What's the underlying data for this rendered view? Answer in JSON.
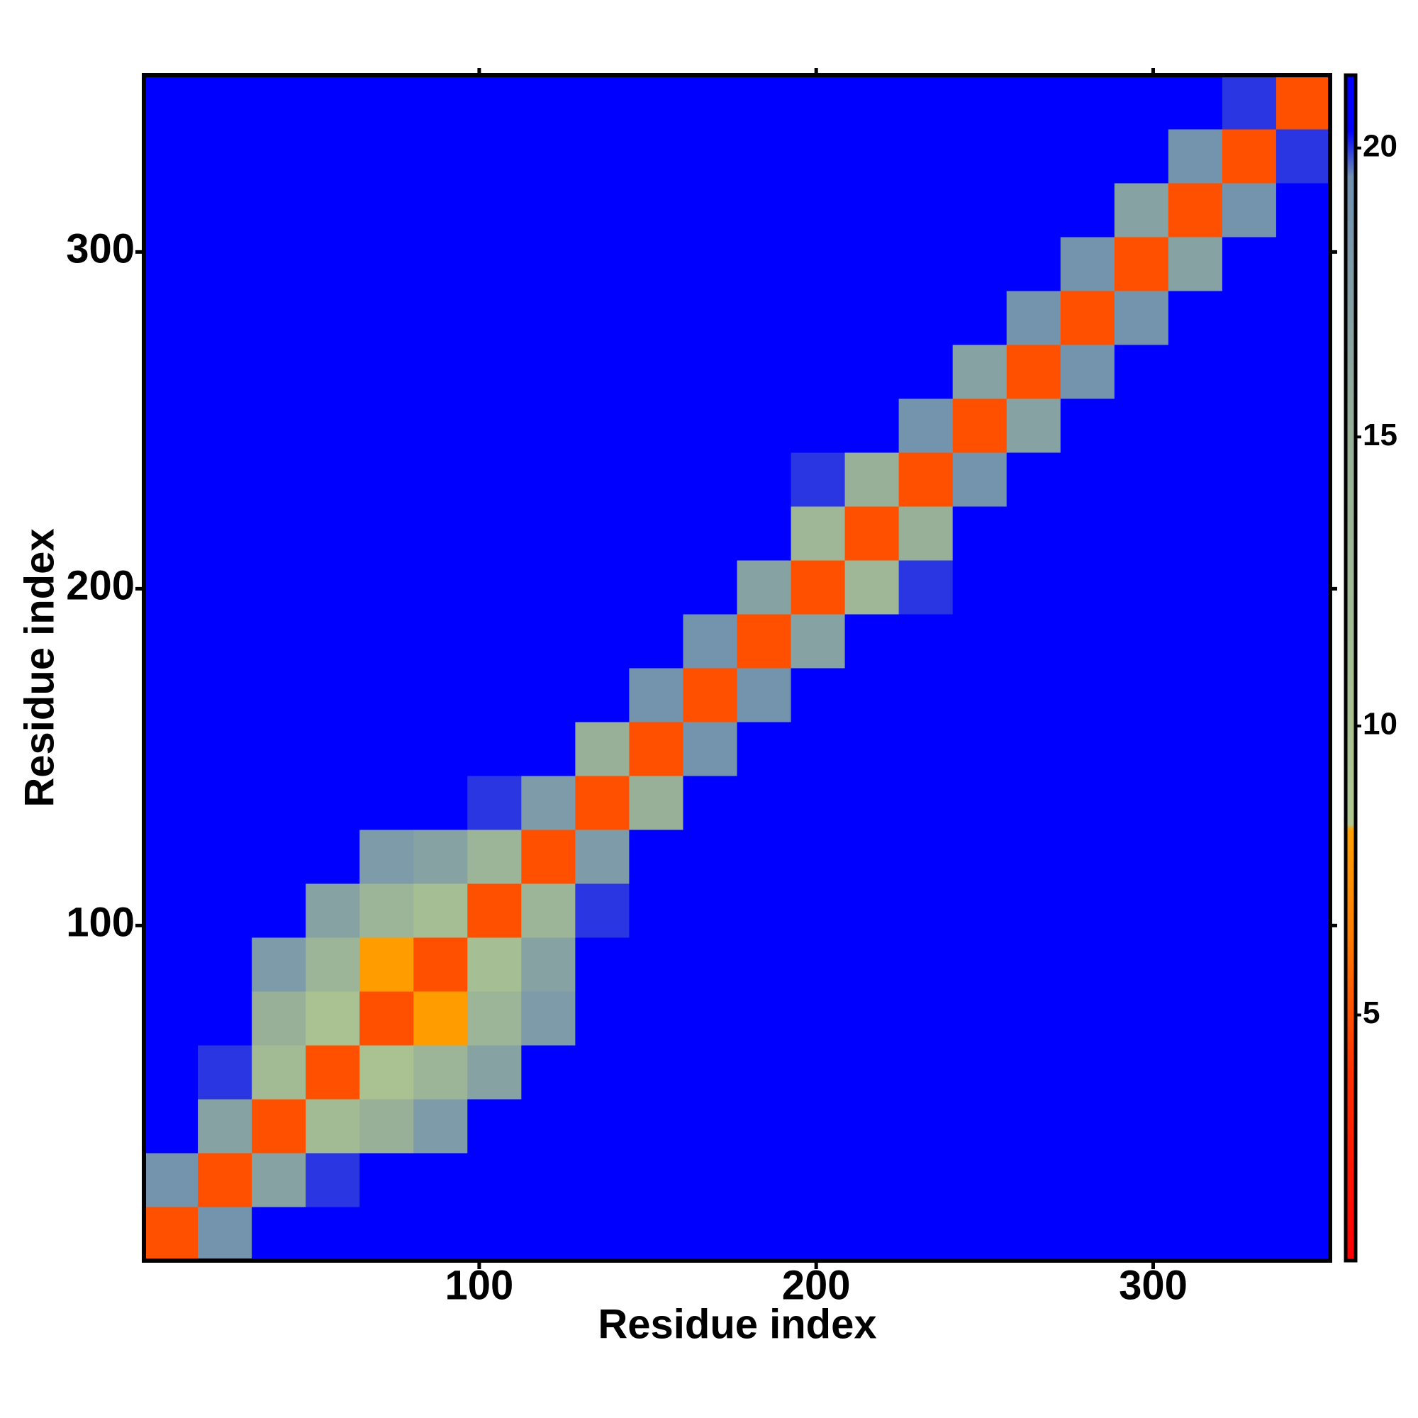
{
  "chart_data": {
    "type": "heatmap",
    "xlabel": "Residue index",
    "ylabel": "Residue index",
    "x": [
      8.5,
      24.5,
      40.5,
      56.5,
      72.5,
      88.5,
      104.5,
      120.5,
      136.5,
      152.5,
      168.5,
      184.5,
      200.5,
      216.5,
      232.5,
      248.5,
      264.5,
      280.5,
      296.5,
      312.5,
      328.5,
      344.5
    ],
    "y": [
      8.5,
      24.5,
      40.5,
      56.5,
      72.5,
      88.5,
      104.5,
      120.5,
      136.5,
      152.5,
      168.5,
      184.5,
      200.5,
      216.5,
      232.5,
      248.5,
      264.5,
      280.5,
      296.5,
      312.5,
      328.5,
      344.5
    ],
    "z": [
      [
        5,
        19,
        21,
        21,
        21,
        21,
        21,
        21,
        21,
        21,
        21,
        21,
        21,
        21,
        21,
        21,
        21,
        21,
        21,
        21,
        21,
        21
      ],
      [
        19,
        5,
        17,
        20,
        21,
        21,
        21,
        21,
        21,
        21,
        21,
        21,
        21,
        21,
        21,
        21,
        21,
        21,
        21,
        21,
        21,
        21
      ],
      [
        21,
        17,
        5,
        12,
        15,
        18,
        21,
        21,
        21,
        21,
        21,
        21,
        21,
        21,
        21,
        21,
        21,
        21,
        21,
        21,
        21,
        21
      ],
      [
        21,
        20,
        12,
        5,
        10,
        14,
        17,
        21,
        21,
        21,
        21,
        21,
        21,
        21,
        21,
        21,
        21,
        21,
        21,
        21,
        21,
        21
      ],
      [
        21,
        21,
        15,
        10,
        5,
        8,
        14,
        18,
        21,
        21,
        21,
        21,
        21,
        21,
        21,
        21,
        21,
        21,
        21,
        21,
        21,
        21
      ],
      [
        21,
        21,
        18,
        14,
        8,
        5,
        11,
        17,
        21,
        21,
        21,
        21,
        21,
        21,
        21,
        21,
        21,
        21,
        21,
        21,
        21,
        21
      ],
      [
        21,
        21,
        21,
        17,
        14,
        11,
        5,
        14,
        20,
        21,
        21,
        21,
        21,
        21,
        21,
        21,
        21,
        21,
        21,
        21,
        21,
        21
      ],
      [
        21,
        21,
        21,
        21,
        18,
        17,
        14,
        5,
        18,
        21,
        21,
        21,
        21,
        21,
        21,
        21,
        21,
        21,
        21,
        21,
        21,
        21
      ],
      [
        21,
        21,
        21,
        21,
        21,
        21,
        20,
        18,
        5,
        15,
        21,
        21,
        21,
        21,
        21,
        21,
        21,
        21,
        21,
        21,
        21,
        21
      ],
      [
        21,
        21,
        21,
        21,
        21,
        21,
        21,
        21,
        15,
        5,
        19,
        21,
        21,
        21,
        21,
        21,
        21,
        21,
        21,
        21,
        21,
        21
      ],
      [
        21,
        21,
        21,
        21,
        21,
        21,
        21,
        21,
        21,
        19,
        5,
        19,
        21,
        21,
        21,
        21,
        21,
        21,
        21,
        21,
        21,
        21
      ],
      [
        21,
        21,
        21,
        21,
        21,
        21,
        21,
        21,
        21,
        21,
        19,
        5,
        17,
        21,
        21,
        21,
        21,
        21,
        21,
        21,
        21,
        21
      ],
      [
        21,
        21,
        21,
        21,
        21,
        21,
        21,
        21,
        21,
        21,
        21,
        17,
        5,
        13,
        20,
        21,
        21,
        21,
        21,
        21,
        21,
        21
      ],
      [
        21,
        21,
        21,
        21,
        21,
        21,
        21,
        21,
        21,
        21,
        21,
        21,
        13,
        5,
        15,
        21,
        21,
        21,
        21,
        21,
        21,
        21
      ],
      [
        21,
        21,
        21,
        21,
        21,
        21,
        21,
        21,
        21,
        21,
        21,
        21,
        20,
        15,
        5,
        19,
        21,
        21,
        21,
        21,
        21,
        21
      ],
      [
        21,
        21,
        21,
        21,
        21,
        21,
        21,
        21,
        21,
        21,
        21,
        21,
        21,
        21,
        19,
        5,
        17,
        21,
        21,
        21,
        21,
        21
      ],
      [
        21,
        21,
        21,
        21,
        21,
        21,
        21,
        21,
        21,
        21,
        21,
        21,
        21,
        21,
        21,
        17,
        5,
        19,
        21,
        21,
        21,
        21
      ],
      [
        21,
        21,
        21,
        21,
        21,
        21,
        21,
        21,
        21,
        21,
        21,
        21,
        21,
        21,
        21,
        21,
        19,
        5,
        19,
        21,
        21,
        21
      ],
      [
        21,
        21,
        21,
        21,
        21,
        21,
        21,
        21,
        21,
        21,
        21,
        21,
        21,
        21,
        21,
        21,
        21,
        19,
        5,
        17,
        21,
        21
      ],
      [
        21,
        21,
        21,
        21,
        21,
        21,
        21,
        21,
        21,
        21,
        21,
        21,
        21,
        21,
        21,
        21,
        21,
        21,
        17,
        5,
        19,
        21
      ],
      [
        21,
        21,
        21,
        21,
        21,
        21,
        21,
        21,
        21,
        21,
        21,
        21,
        21,
        21,
        21,
        21,
        21,
        21,
        21,
        19,
        5,
        20
      ],
      [
        21,
        21,
        21,
        21,
        21,
        21,
        21,
        21,
        21,
        21,
        21,
        21,
        21,
        21,
        21,
        21,
        21,
        21,
        21,
        21,
        20,
        5
      ]
    ],
    "xlim": [
      0.5,
      352.5
    ],
    "ylim": [
      0.5,
      352.5
    ],
    "xticks": [
      100,
      200,
      300
    ],
    "yticks": [
      100,
      200,
      300
    ],
    "zlim": [
      0.75,
      21.26
    ],
    "zticks": [
      5,
      10,
      15,
      20
    ],
    "colorscale": [
      {
        "value": 0.75,
        "color": "#ff0000"
      },
      {
        "value": 4,
        "color": "#ff3000"
      },
      {
        "value": 6.5,
        "color": "#ff8000"
      },
      {
        "value": 8.2,
        "color": "#ffa000"
      },
      {
        "value": 8.3,
        "color": "#b0c890"
      },
      {
        "value": 15,
        "color": "#98b098"
      },
      {
        "value": 19.5,
        "color": "#7090b0"
      },
      {
        "value": 20.3,
        "color": "#0000ff"
      },
      {
        "value": 21.26,
        "color": "#0000ff"
      }
    ]
  }
}
